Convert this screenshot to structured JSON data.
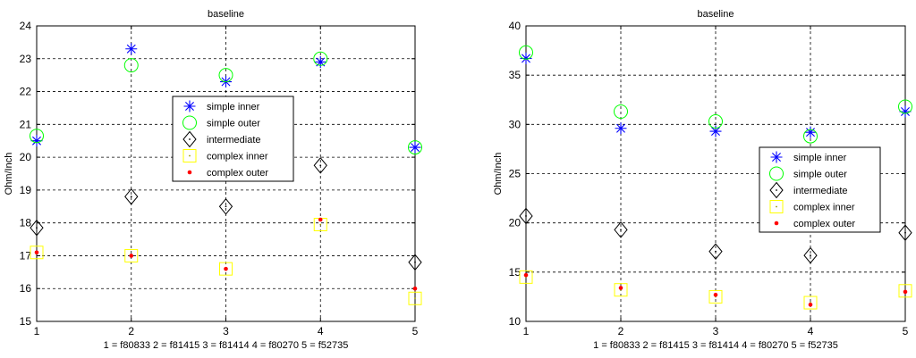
{
  "chart_data": [
    {
      "type": "scatter",
      "title": "baseline",
      "xlabel": "1 = f80833  2 = f81415  3 = f81414  4 = f80270  5 = f52735",
      "ylabel": "Ohm/Inch",
      "xlim": [
        1,
        5
      ],
      "ylim": [
        15,
        24
      ],
      "x_ticks": [
        "1",
        "2",
        "3",
        "4",
        "5"
      ],
      "y_ticks": [
        "15",
        "16",
        "17",
        "18",
        "19",
        "20",
        "21",
        "22",
        "23",
        "24"
      ],
      "grid": true,
      "legend_position": "center-right",
      "x": [
        1,
        2,
        3,
        4,
        5
      ],
      "series": [
        {
          "name": "simple inner",
          "marker": "asterisk",
          "color": "#0000ff",
          "values": [
            20.5,
            23.3,
            22.3,
            22.9,
            20.3
          ]
        },
        {
          "name": "simple outer",
          "marker": "circle",
          "color": "#00ff00",
          "values": [
            20.65,
            22.8,
            22.5,
            23.0,
            20.3
          ]
        },
        {
          "name": "intermediate",
          "marker": "diamond",
          "color": "#000000",
          "values": [
            17.85,
            18.8,
            18.5,
            19.75,
            16.8
          ]
        },
        {
          "name": "complex inner",
          "marker": "square",
          "color": "#ffff00",
          "values": [
            17.1,
            17.0,
            16.6,
            17.95,
            15.7
          ]
        },
        {
          "name": "complex outer",
          "marker": "dot",
          "color": "#ff0000",
          "values": [
            17.1,
            17.0,
            16.6,
            18.1,
            16.0
          ]
        }
      ]
    },
    {
      "type": "scatter",
      "title": "baseline",
      "xlabel": "1 = f80833  2 = f81415  3 = f81414  4 = f80270  5 = f52735",
      "ylabel": "Ohm/Inch",
      "xlim": [
        1,
        5
      ],
      "ylim": [
        10,
        40
      ],
      "x_ticks": [
        "1",
        "2",
        "3",
        "4",
        "5"
      ],
      "y_ticks": [
        "10",
        "15",
        "20",
        "25",
        "30",
        "35",
        "40"
      ],
      "grid": true,
      "legend_position": "right",
      "x": [
        1,
        2,
        3,
        4,
        5
      ],
      "series": [
        {
          "name": "simple inner",
          "marker": "asterisk",
          "color": "#0000ff",
          "values": [
            36.7,
            29.6,
            29.3,
            29.2,
            31.3
          ]
        },
        {
          "name": "simple outer",
          "marker": "circle",
          "color": "#00ff00",
          "values": [
            37.3,
            31.3,
            30.3,
            28.8,
            31.8
          ]
        },
        {
          "name": "intermediate",
          "marker": "diamond",
          "color": "#000000",
          "values": [
            20.7,
            19.3,
            17.1,
            16.7,
            19.0
          ]
        },
        {
          "name": "complex inner",
          "marker": "square",
          "color": "#ffff00",
          "values": [
            14.5,
            13.2,
            12.5,
            11.9,
            13.1
          ]
        },
        {
          "name": "complex outer",
          "marker": "dot",
          "color": "#ff0000",
          "values": [
            14.7,
            13.4,
            12.7,
            11.7,
            13.0
          ]
        }
      ]
    }
  ]
}
